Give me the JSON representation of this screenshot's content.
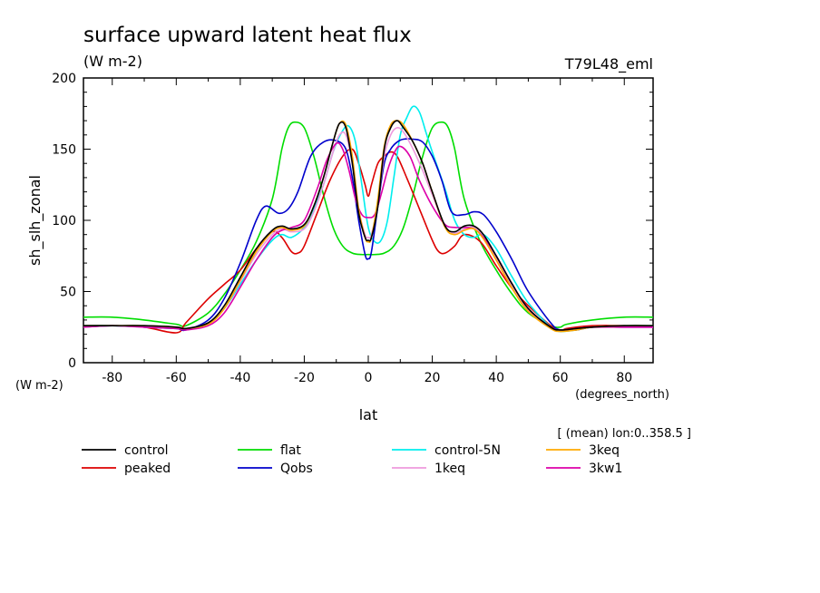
{
  "chart_data": {
    "type": "line",
    "title": "surface upward latent heat flux",
    "units": "(W m-2)",
    "run_label": "T79L48_eml",
    "xlabel": "lat",
    "xunits": "(degrees_north)",
    "ylabel": "sh_slh_zonal",
    "yunits": "(W m-2)",
    "subset_note": "[ (mean) lon:0..358.5 ]",
    "xlim": [
      -89,
      89
    ],
    "ylim": [
      0,
      200
    ],
    "xticks": [
      "-80",
      "-60",
      "-40",
      "-20",
      "0",
      "20",
      "40",
      "60",
      "80"
    ],
    "yticks": [
      "0",
      "50",
      "100",
      "150",
      "200"
    ],
    "grid": false,
    "legend_placement": "bottom",
    "series": [
      {
        "name": "control",
        "color": "#000000",
        "x": [
          -89,
          -80,
          -70,
          -60,
          -57,
          -50,
          -45,
          -40,
          -35,
          -30,
          -27,
          -24,
          -20,
          -17,
          -14,
          -11,
          -9,
          -7,
          -5,
          -3,
          -1,
          0,
          1,
          3,
          5,
          7,
          9,
          11,
          14,
          17,
          20,
          24,
          27,
          30,
          33,
          36,
          40,
          45,
          50,
          57,
          60,
          65,
          70,
          80,
          89
        ],
        "y": [
          26,
          26,
          26,
          25,
          24,
          28,
          40,
          60,
          80,
          93,
          96,
          94,
          97,
          110,
          130,
          155,
          168,
          165,
          140,
          105,
          88,
          86,
          88,
          110,
          150,
          165,
          170,
          165,
          155,
          140,
          120,
          96,
          92,
          96,
          96,
          90,
          75,
          55,
          38,
          25,
          23,
          24,
          25,
          26,
          26
        ]
      },
      {
        "name": "flat",
        "color": "#00dd00",
        "x": [
          -89,
          -80,
          -70,
          -60,
          -57,
          -50,
          -45,
          -40,
          -35,
          -30,
          -27,
          -25,
          -23,
          -20,
          -17,
          -14,
          -11,
          -8,
          -5,
          -2,
          0,
          2,
          5,
          8,
          11,
          14,
          17,
          20,
          23,
          25,
          27,
          30,
          35,
          40,
          45,
          50,
          57,
          60,
          62,
          70,
          80,
          89
        ],
        "y": [
          32,
          32,
          30,
          27,
          26,
          35,
          48,
          65,
          85,
          115,
          150,
          165,
          169,
          165,
          145,
          118,
          95,
          82,
          77,
          76,
          76,
          76,
          77,
          82,
          95,
          118,
          145,
          165,
          169,
          165,
          150,
          115,
          85,
          65,
          48,
          35,
          26,
          25,
          27,
          30,
          32,
          32
        ]
      },
      {
        "name": "control-5N",
        "color": "#00eeee",
        "x": [
          -89,
          -80,
          -70,
          -60,
          -57,
          -50,
          -45,
          -40,
          -35,
          -30,
          -27,
          -24,
          -20,
          -17,
          -14,
          -11,
          -8,
          -6,
          -4,
          -2,
          0,
          2,
          4,
          6,
          8,
          10,
          12,
          14,
          16,
          18,
          20,
          24,
          27,
          30,
          33,
          36,
          40,
          45,
          50,
          57,
          60,
          65,
          70,
          80,
          89
        ],
        "y": [
          26,
          26,
          25,
          24,
          23,
          28,
          38,
          55,
          72,
          86,
          90,
          88,
          95,
          108,
          125,
          148,
          163,
          166,
          155,
          125,
          95,
          85,
          86,
          100,
          130,
          160,
          172,
          180,
          176,
          162,
          148,
          122,
          100,
          90,
          88,
          90,
          80,
          60,
          42,
          25,
          22,
          23,
          25,
          26,
          26
        ]
      },
      {
        "name": "3keq",
        "color": "#ffaa00",
        "x": [
          -89,
          -80,
          -70,
          -60,
          -57,
          -50,
          -45,
          -40,
          -35,
          -30,
          -27,
          -24,
          -20,
          -17,
          -14,
          -11,
          -9,
          -7,
          -5,
          -3,
          -1,
          0,
          1,
          3,
          5,
          7,
          9,
          11,
          14,
          17,
          20,
          24,
          27,
          30,
          33,
          36,
          40,
          45,
          50,
          57,
          60,
          65,
          70,
          80,
          89
        ],
        "y": [
          26,
          26,
          26,
          25,
          24,
          27,
          38,
          58,
          78,
          92,
          95,
          93,
          96,
          110,
          130,
          155,
          168,
          167,
          145,
          108,
          88,
          85,
          88,
          115,
          152,
          167,
          170,
          167,
          155,
          140,
          120,
          95,
          90,
          93,
          94,
          87,
          72,
          52,
          36,
          24,
          22,
          23,
          25,
          26,
          26
        ]
      },
      {
        "name": "peaked",
        "color": "#dd0000",
        "x": [
          -89,
          -80,
          -70,
          -60,
          -57,
          -50,
          -45,
          -40,
          -35,
          -30,
          -27,
          -24,
          -22,
          -20,
          -16,
          -12,
          -8,
          -5,
          -3,
          -1,
          0,
          1,
          3,
          5,
          7,
          9,
          12,
          16,
          20,
          22,
          24,
          27,
          30,
          35,
          40,
          45,
          50,
          57,
          60,
          62,
          70,
          80,
          89
        ],
        "y": [
          26,
          26,
          25,
          21,
          28,
          45,
          55,
          65,
          80,
          92,
          88,
          78,
          77,
          82,
          105,
          128,
          145,
          150,
          140,
          125,
          117,
          125,
          140,
          145,
          148,
          145,
          130,
          108,
          86,
          78,
          77,
          82,
          90,
          85,
          68,
          52,
          40,
          26,
          22,
          24,
          26,
          26,
          25
        ]
      },
      {
        "name": "Qobs",
        "color": "#0000cc",
        "x": [
          -89,
          -80,
          -70,
          -60,
          -57,
          -50,
          -45,
          -40,
          -35,
          -32,
          -28,
          -25,
          -22,
          -18,
          -14,
          -10,
          -7,
          -5,
          -3,
          -1,
          0,
          1,
          3,
          5,
          7,
          9,
          11,
          14,
          17,
          20,
          23,
          26,
          30,
          33,
          36,
          40,
          45,
          50,
          57,
          60,
          65,
          70,
          80,
          89
        ],
        "y": [
          25,
          26,
          25,
          24,
          23,
          30,
          45,
          70,
          100,
          110,
          105,
          108,
          120,
          145,
          155,
          156,
          150,
          130,
          100,
          76,
          73,
          78,
          110,
          140,
          150,
          155,
          157,
          157,
          155,
          145,
          128,
          106,
          104,
          106,
          104,
          92,
          72,
          50,
          28,
          23,
          23,
          25,
          25,
          25
        ]
      },
      {
        "name": "1keq",
        "color": "#ee99dd",
        "x": [
          -89,
          -80,
          -70,
          -60,
          -57,
          -50,
          -45,
          -40,
          -35,
          -30,
          -27,
          -24,
          -20,
          -17,
          -14,
          -11,
          -9,
          -7,
          -5,
          -3,
          -1,
          0,
          1,
          3,
          5,
          7,
          9,
          11,
          14,
          17,
          20,
          24,
          27,
          30,
          33,
          36,
          40,
          45,
          50,
          57,
          60,
          65,
          70,
          80,
          89
        ],
        "y": [
          25,
          26,
          25,
          25,
          24,
          28,
          38,
          57,
          76,
          90,
          94,
          92,
          94,
          106,
          125,
          148,
          160,
          160,
          140,
          108,
          90,
          88,
          90,
          112,
          145,
          160,
          165,
          162,
          150,
          135,
          118,
          96,
          91,
          94,
          95,
          88,
          73,
          53,
          37,
          25,
          23,
          24,
          25,
          25,
          25
        ]
      },
      {
        "name": "3kw1",
        "color": "#dd00aa",
        "x": [
          -89,
          -80,
          -70,
          -60,
          -57,
          -50,
          -45,
          -40,
          -35,
          -30,
          -27,
          -24,
          -20,
          -16,
          -13,
          -10,
          -8,
          -6,
          -4,
          -2,
          0,
          2,
          4,
          6,
          8,
          10,
          13,
          16,
          20,
          24,
          27,
          30,
          33,
          36,
          40,
          45,
          50,
          57,
          60,
          65,
          70,
          80,
          89
        ],
        "y": [
          25,
          26,
          25,
          24,
          23,
          26,
          35,
          53,
          72,
          88,
          93,
          95,
          100,
          122,
          142,
          154,
          150,
          135,
          115,
          104,
          102,
          104,
          118,
          135,
          147,
          152,
          145,
          128,
          110,
          97,
          95,
          95,
          94,
          88,
          75,
          55,
          38,
          25,
          23,
          24,
          25,
          25,
          25
        ]
      }
    ]
  }
}
